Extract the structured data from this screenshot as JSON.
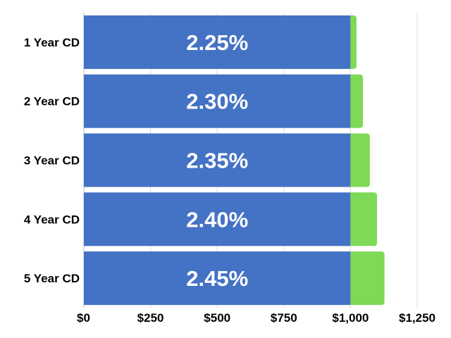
{
  "chart_data": {
    "type": "bar",
    "orientation": "horizontal",
    "stacked": true,
    "title": "",
    "xlabel": "",
    "ylabel": "",
    "categories": [
      "1 Year CD",
      "2 Year CD",
      "3 Year CD",
      "4 Year CD",
      "5 Year CD"
    ],
    "series": [
      {
        "color": "#4472c4",
        "values": [
          1000,
          1000,
          1000,
          1000,
          1000
        ]
      },
      {
        "color": "#7ed957",
        "values": [
          22.5,
          46.55,
          72.54,
          99.46,
          127.33
        ]
      }
    ],
    "data_labels": [
      "2.25%",
      "2.30%",
      "2.35%",
      "2.40%",
      "2.45%"
    ],
    "xlim": [
      0,
      1250
    ],
    "x_ticks": [
      0,
      250,
      500,
      750,
      1000,
      1250
    ],
    "x_tick_labels": [
      "$0",
      "$250",
      "$500",
      "$750",
      "$1,000",
      "$1,250"
    ],
    "grid": "vertical",
    "legend": "none"
  }
}
